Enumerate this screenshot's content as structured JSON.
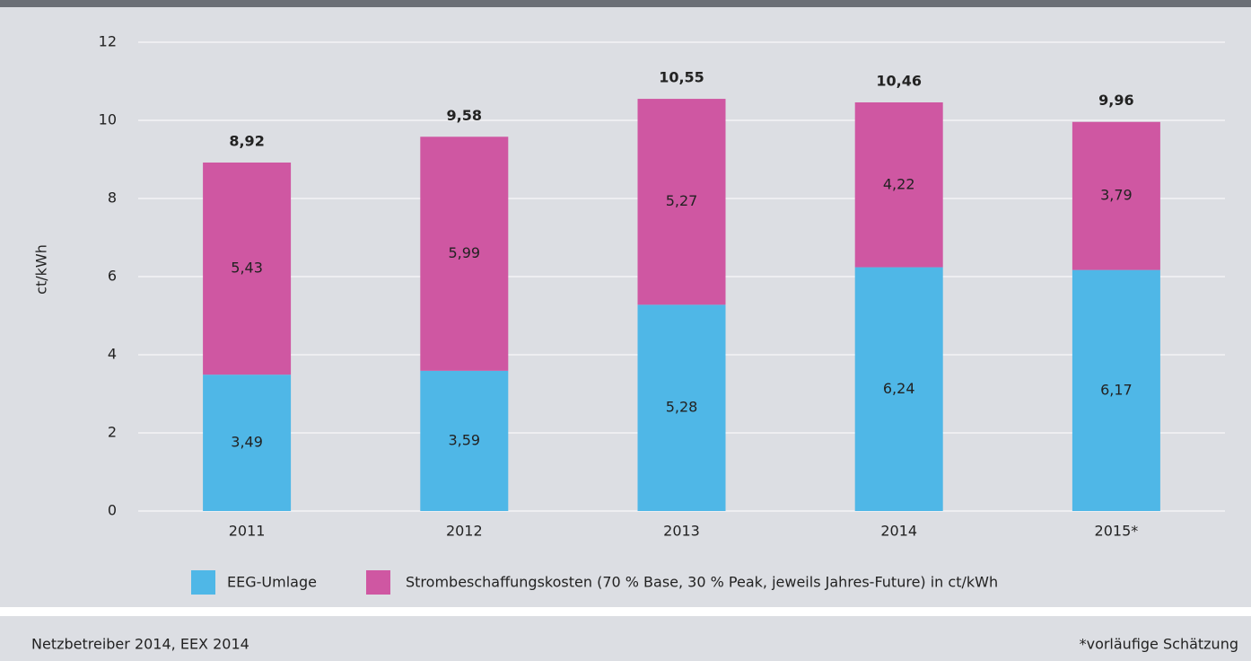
{
  "chart_data": {
    "type": "stacked_bar",
    "y_label": "ct/kWh",
    "categories": [
      "2011",
      "2012",
      "2013",
      "2014",
      "2015*"
    ],
    "series": [
      {
        "name": "EEG-Umlage",
        "color": "#4fb7e7",
        "values": [
          3.49,
          3.59,
          5.28,
          6.24,
          6.17
        ],
        "value_labels": [
          "3,49",
          "3,59",
          "5,28",
          "6,24",
          "6,17"
        ]
      },
      {
        "name": "Strombeschaffungskosten (70 % Base, 30 % Peak, jeweils Jahres-Future) in ct/kWh",
        "color": "#cf57a2",
        "values": [
          5.43,
          5.99,
          5.27,
          4.22,
          3.79
        ],
        "value_labels": [
          "5,43",
          "5,99",
          "5,27",
          "4,22",
          "3,79"
        ]
      }
    ],
    "totals": [
      8.92,
      9.58,
      10.55,
      10.46,
      9.96
    ],
    "total_labels": [
      "8,92",
      "9,58",
      "10,55",
      "10,46",
      "9,96"
    ],
    "ylim": [
      0,
      12
    ],
    "yticks": [
      0,
      2,
      4,
      6,
      8,
      10,
      12
    ],
    "grid": true,
    "source": "Netzbetreiber 2014, EEX 2014",
    "note": "*vorläufige Schätzung"
  }
}
